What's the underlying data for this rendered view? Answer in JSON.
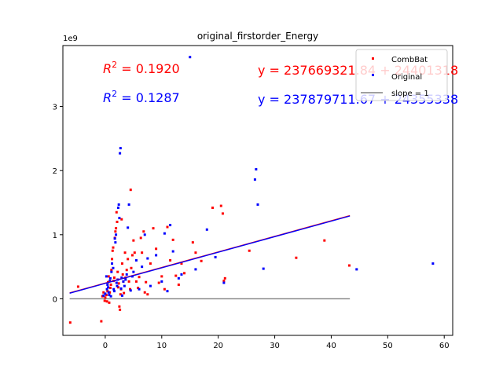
{
  "chart_data": {
    "type": "scatter",
    "title": "original_firstorder_Energy",
    "xlabel": "",
    "ylabel": "",
    "y_scale_label": "1e9",
    "xlim": [
      -7.5,
      61.5
    ],
    "ylim": [
      -0.57,
      3.95
    ],
    "xticks": [
      0,
      10,
      20,
      30,
      40,
      50,
      60
    ],
    "yticks": [
      0,
      1,
      2,
      3
    ],
    "grid": false,
    "legend_position": "top-right",
    "legend": [
      "CombBat",
      "Original",
      "slope = 1"
    ],
    "annotations": {
      "combat_r2": "0.1920",
      "original_r2": "0.1287",
      "combat_eq": "y = 237669321.84 + 24401318",
      "original_eq": "y = 237879711.67 + 24355338"
    },
    "series": [
      {
        "name": "CombBat",
        "color": "#ff0000",
        "points": [
          [
            -6.2,
            -0.37
          ],
          [
            -4.8,
            0.19
          ],
          [
            -0.7,
            -0.35
          ],
          [
            -0.5,
            0.04
          ],
          [
            -0.3,
            0.1
          ],
          [
            -0.1,
            -0.03
          ],
          [
            0.0,
            0.02
          ],
          [
            0.2,
            0.06
          ],
          [
            0.3,
            -0.04
          ],
          [
            0.4,
            0.12
          ],
          [
            0.5,
            0.26
          ],
          [
            0.6,
            0.35
          ],
          [
            0.7,
            -0.06
          ],
          [
            0.8,
            0.1
          ],
          [
            0.9,
            0.17
          ],
          [
            1.0,
            0.22
          ],
          [
            1.1,
            0.45
          ],
          [
            1.2,
            0.62
          ],
          [
            1.3,
            0.75
          ],
          [
            1.4,
            0.8
          ],
          [
            1.5,
            0.28
          ],
          [
            1.6,
            0.33
          ],
          [
            1.7,
            0.95
          ],
          [
            1.8,
            1.05
          ],
          [
            1.9,
            1.1
          ],
          [
            2.0,
            1.35
          ],
          [
            2.1,
            1.2
          ],
          [
            2.2,
            0.42
          ],
          [
            2.3,
            0.18
          ],
          [
            2.4,
            0.24
          ],
          [
            2.5,
            -0.12
          ],
          [
            2.6,
            -0.17
          ],
          [
            2.7,
            0.07
          ],
          [
            2.8,
            0.15
          ],
          [
            2.9,
            1.24
          ],
          [
            3.0,
            0.55
          ],
          [
            3.1,
            0.38
          ],
          [
            3.2,
            0.27
          ],
          [
            3.3,
            0.09
          ],
          [
            3.5,
            0.72
          ],
          [
            3.6,
            0.33
          ],
          [
            3.8,
            0.45
          ],
          [
            4.0,
            0.62
          ],
          [
            4.2,
            0.27
          ],
          [
            4.4,
            0.15
          ],
          [
            4.5,
            1.7
          ],
          [
            4.6,
            0.48
          ],
          [
            4.8,
            0.68
          ],
          [
            5.0,
            0.91
          ],
          [
            5.2,
            0.72
          ],
          [
            5.5,
            0.27
          ],
          [
            5.8,
            0.17
          ],
          [
            6.0,
            0.34
          ],
          [
            6.3,
            0.95
          ],
          [
            6.5,
            0.72
          ],
          [
            6.8,
            1.05
          ],
          [
            7.0,
            0.1
          ],
          [
            7.2,
            0.26
          ],
          [
            7.5,
            0.07
          ],
          [
            8.0,
            0.55
          ],
          [
            8.5,
            1.1
          ],
          [
            9.0,
            0.78
          ],
          [
            9.5,
            0.25
          ],
          [
            10.0,
            0.35
          ],
          [
            10.5,
            0.15
          ],
          [
            11.0,
            1.12
          ],
          [
            11.5,
            0.6
          ],
          [
            12.0,
            0.92
          ],
          [
            12.5,
            0.36
          ],
          [
            13.0,
            0.22
          ],
          [
            13.5,
            0.55
          ],
          [
            14.0,
            0.4
          ],
          [
            15.5,
            0.88
          ],
          [
            16.0,
            0.72
          ],
          [
            17.0,
            0.59
          ],
          [
            19.0,
            1.42
          ],
          [
            20.5,
            1.45
          ],
          [
            20.8,
            1.33
          ],
          [
            21.0,
            0.28
          ],
          [
            21.2,
            0.32
          ],
          [
            25.5,
            0.75
          ],
          [
            33.8,
            0.64
          ],
          [
            38.8,
            0.91
          ],
          [
            43.2,
            0.52
          ]
        ]
      },
      {
        "name": "Original",
        "color": "#0000ff",
        "points": [
          [
            -0.3,
            0.05
          ],
          [
            0.0,
            0.08
          ],
          [
            0.2,
            0.35
          ],
          [
            0.3,
            0.15
          ],
          [
            0.4,
            0.22
          ],
          [
            0.5,
            0.18
          ],
          [
            0.6,
            0.1
          ],
          [
            0.7,
            0.06
          ],
          [
            0.8,
            0.28
          ],
          [
            0.9,
            0.32
          ],
          [
            1.0,
            0.04
          ],
          [
            1.1,
            0.42
          ],
          [
            1.2,
            0.55
          ],
          [
            1.4,
            0.48
          ],
          [
            1.5,
            0.15
          ],
          [
            1.6,
            0.12
          ],
          [
            1.7,
            0.94
          ],
          [
            1.8,
            0.88
          ],
          [
            1.9,
            1.0
          ],
          [
            2.0,
            0.25
          ],
          [
            2.1,
            0.2
          ],
          [
            2.2,
            0.3
          ],
          [
            2.3,
            1.42
          ],
          [
            2.4,
            1.47
          ],
          [
            2.5,
            1.26
          ],
          [
            2.6,
            2.27
          ],
          [
            2.7,
            2.35
          ],
          [
            2.8,
            0.16
          ],
          [
            2.9,
            0.33
          ],
          [
            3.0,
            0.05
          ],
          [
            3.2,
            0.27
          ],
          [
            3.4,
            0.2
          ],
          [
            3.6,
            0.3
          ],
          [
            3.8,
            0.38
          ],
          [
            4.0,
            1.11
          ],
          [
            4.2,
            1.47
          ],
          [
            4.5,
            0.13
          ],
          [
            4.8,
            0.35
          ],
          [
            5.0,
            0.42
          ],
          [
            5.5,
            0.6
          ],
          [
            6.0,
            0.15
          ],
          [
            6.5,
            0.5
          ],
          [
            7.0,
            1.0
          ],
          [
            7.5,
            0.63
          ],
          [
            8.0,
            0.2
          ],
          [
            9.0,
            0.68
          ],
          [
            10.0,
            0.27
          ],
          [
            10.5,
            1.02
          ],
          [
            11.0,
            0.12
          ],
          [
            11.5,
            1.15
          ],
          [
            12.0,
            0.74
          ],
          [
            13.0,
            0.32
          ],
          [
            13.5,
            0.38
          ],
          [
            15.0,
            3.77
          ],
          [
            16.0,
            0.46
          ],
          [
            18.0,
            1.08
          ],
          [
            19.5,
            0.65
          ],
          [
            21.0,
            0.25
          ],
          [
            26.5,
            1.86
          ],
          [
            26.7,
            2.02
          ],
          [
            27.0,
            1.47
          ],
          [
            28.0,
            0.47
          ],
          [
            44.5,
            0.46
          ],
          [
            58.0,
            0.55
          ]
        ]
      }
    ],
    "fit_lines": [
      {
        "name": "CombBat fit",
        "color": "#ff0000",
        "x": [
          -6.3,
          43.3
        ],
        "y": [
          0.092,
          1.298
        ]
      },
      {
        "name": "Original fit",
        "color": "#0000ff",
        "x": [
          -6.3,
          43.3
        ],
        "y": [
          0.088,
          1.292
        ]
      },
      {
        "name": "slope = 1",
        "color": "#808080",
        "x": [
          -6.3,
          43.3
        ],
        "y": [
          0.0,
          0.0
        ]
      }
    ]
  }
}
